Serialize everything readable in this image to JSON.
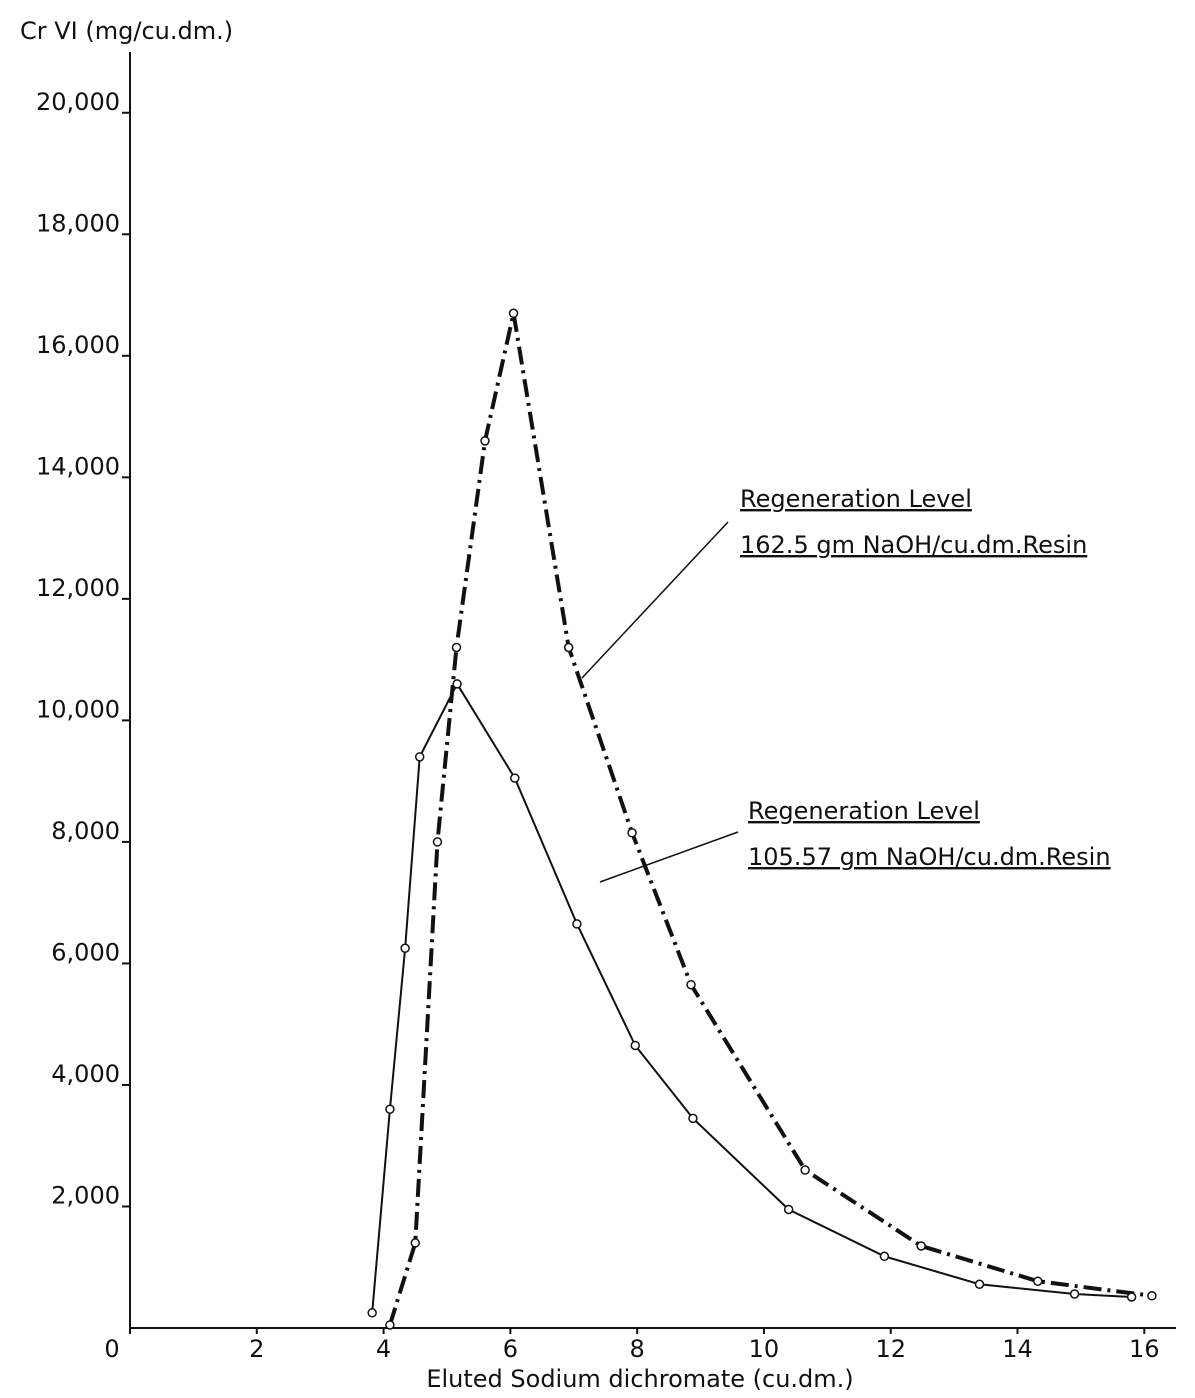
{
  "chart_data": {
    "type": "line",
    "y_label": "Cr VI (mg/cu.dm.)",
    "x_label": "Eluted Sodium dichromate (cu.dm.)",
    "xlim": [
      0,
      16.5
    ],
    "ylim": [
      0,
      21000
    ],
    "xticks": [
      0,
      2,
      4,
      6,
      8,
      10,
      12,
      14,
      16
    ],
    "yticks": [
      {
        "value": 2000,
        "label": "2,000"
      },
      {
        "value": 4000,
        "label": "4,000"
      },
      {
        "value": 6000,
        "label": "6,000"
      },
      {
        "value": 8000,
        "label": "8,000"
      },
      {
        "value": 10000,
        "label": "10,000"
      },
      {
        "value": 12000,
        "label": "12,000"
      },
      {
        "value": 14000,
        "label": "14,000"
      },
      {
        "value": 16000,
        "label": "16,000"
      },
      {
        "value": 18000,
        "label": "18,000"
      },
      {
        "value": 20000,
        "label": "20,000"
      }
    ],
    "grid": false,
    "series": [
      {
        "color": "#111111",
        "dash": "dashdot",
        "x": [
          4.1,
          4.5,
          4.85,
          5.15,
          5.6,
          6.05,
          6.92,
          7.92,
          8.85,
          10.65,
          12.48,
          14.32,
          16.12
        ],
        "values": [
          50,
          1400,
          8000,
          11200,
          14600,
          16700,
          11200,
          8150,
          5650,
          2600,
          1350,
          770,
          530
        ]
      },
      {
        "color": "#111111",
        "dash": "solid",
        "x": [
          3.82,
          4.1,
          4.34,
          4.57,
          5.16,
          6.07,
          7.05,
          7.97,
          8.88,
          10.39,
          11.9,
          13.4,
          14.9,
          15.8
        ],
        "values": [
          250,
          3600,
          6250,
          9400,
          10600,
          9050,
          6650,
          4650,
          3450,
          1950,
          1180,
          720,
          560,
          510
        ]
      }
    ],
    "annotations": [
      [
        "Regeneration Level",
        "162.5 gm NaOH/cu.dm.Resin"
      ],
      [
        "Regeneration Level",
        "105.57 gm NaOH/cu.dm.Resin"
      ]
    ]
  }
}
